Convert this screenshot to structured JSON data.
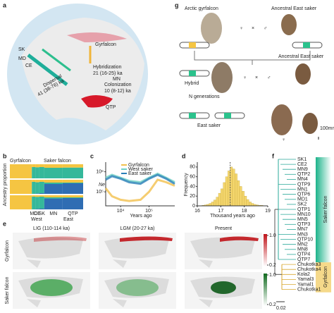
{
  "panels": {
    "a": {
      "label": "a",
      "sites": [
        "SK",
        "MD",
        "CE",
        "MN",
        "QTP"
      ],
      "gyrfalcon": "Gyrfalcon",
      "hybridization": "Hybridization",
      "hybridization_time": "21 (16-25) ka",
      "dispersal": "Dispersal",
      "dispersal_time": "41 (38-76) ka",
      "colonization": "Colonization",
      "colonization_time": "10 (8-12) ka"
    },
    "b": {
      "label": "b",
      "top": [
        "Gyrfalcon",
        "Saker falcon"
      ],
      "ylabel": "Ancestry proportion",
      "groups": [
        "",
        "MD",
        "CE",
        "SK",
        "MN",
        "QTP"
      ],
      "regions": [
        "West",
        "East"
      ],
      "colors": [
        "#f5c542",
        "#35b89a",
        "#2f6db3"
      ],
      "rows": [
        [
          [
            1,
            0
          ],
          [
            0.2,
            0.8
          ],
          [
            0.22,
            0.78
          ],
          [
            0.2,
            0.8
          ],
          [
            0.25,
            0.75
          ],
          [
            0.24,
            0.76
          ]
        ],
        [
          [
            1,
            0,
            0
          ],
          [
            0.15,
            0.85,
            0
          ],
          [
            0.18,
            0.8,
            0.02
          ],
          [
            0.15,
            0.8,
            0.05
          ],
          [
            0.2,
            0.1,
            0.7
          ],
          [
            0.2,
            0.05,
            0.75
          ]
        ],
        [
          [
            1,
            0,
            0
          ],
          [
            0.1,
            0.9,
            0
          ],
          [
            0.12,
            0.85,
            0.03
          ],
          [
            0.1,
            0.85,
            0.05
          ],
          [
            0.15,
            0.08,
            0.77
          ],
          [
            0.15,
            0.05,
            0.8
          ]
        ]
      ]
    },
    "c": {
      "label": "c",
      "type": "line",
      "ylabel": "Ne",
      "xlabel": "Years ago",
      "log": true,
      "x": [
        3000,
        5000,
        10000,
        20000,
        50000,
        100000,
        200000,
        400000,
        800000
      ],
      "series": [
        {
          "name": "Gyrfalcon",
          "color": "#f2c14e",
          "values": [
            150000,
            60000,
            40000,
            35000,
            40000,
            100000,
            400000,
            300000,
            200000
          ]
        },
        {
          "name": "West saker",
          "color": "#6fd0c4",
          "values": [
            500000,
            700000,
            500000,
            350000,
            300000,
            500000,
            800000,
            500000,
            300000
          ]
        },
        {
          "name": "East saker",
          "color": "#2a7fb8",
          "values": [
            400000,
            600000,
            450000,
            300000,
            250000,
            450000,
            700000,
            450000,
            250000
          ]
        }
      ],
      "xlim": [
        3000,
        800000
      ],
      "xticks": [
        {
          "value": 10000,
          "label": "10⁴"
        },
        {
          "value": 100000,
          "label": "10⁵"
        }
      ],
      "ylim": [
        20000,
        3000000
      ],
      "yticks": [
        {
          "value": 100000,
          "label": "10⁵"
        },
        {
          "value": 1000000,
          "label": "10⁶"
        }
      ]
    },
    "d": {
      "label": "d",
      "type": "histogram",
      "ylabel": "Frequency",
      "xlabel": "Thousand years ago",
      "color": "#f5d76e",
      "mean": 17.4,
      "bins": [
        16.0,
        16.1,
        16.2,
        16.3,
        16.4,
        16.5,
        16.6,
        16.7,
        16.8,
        16.9,
        17.0,
        17.1,
        17.2,
        17.3,
        17.4,
        17.5,
        17.6,
        17.7,
        17.8,
        17.9,
        18.0,
        18.1,
        18.2,
        18.3,
        18.4,
        18.5,
        18.6,
        18.7,
        18.8,
        18.9,
        19.0
      ],
      "counts": [
        0,
        0,
        1,
        2,
        3,
        5,
        8,
        12,
        18,
        26,
        35,
        48,
        60,
        72,
        80,
        76,
        66,
        52,
        40,
        30,
        20,
        13,
        8,
        5,
        3,
        2,
        1,
        1,
        0,
        0
      ],
      "xlim": [
        16,
        19
      ],
      "xticks": [
        16,
        17,
        18,
        19
      ],
      "ylim": [
        0,
        90
      ],
      "yticks": [
        0,
        20,
        40,
        60,
        80
      ]
    },
    "e": {
      "label": "e",
      "columns": [
        "LIG (110-114 ka)",
        "LGM (20-27 ka)",
        "Present"
      ],
      "rows": [
        "Gyrfalcon",
        "Saker falcon"
      ],
      "scale_ticks": [
        {
          "value": 1,
          "label": "1.0"
        },
        0.2
      ]
    },
    "f": {
      "label": "f",
      "leaves": [
        "SK1",
        "CE2",
        "MN9",
        "QTP2",
        "MN4",
        "QTP9",
        "MN1",
        "QTP6",
        "MD1",
        "SK2",
        "QTP1",
        "MN10",
        "MN5",
        "QTP3",
        "MN7",
        "MN3",
        "QTP10",
        "MN2",
        "MN8",
        "QTP4",
        "QTP7",
        "Chukotka3",
        "Chukotka4",
        "Kola2",
        "Yamal3",
        "Yamal1",
        "Chukotka1"
      ],
      "clades": [
        "Saker falcon",
        "Gyrfalcon"
      ],
      "scale": "0.02"
    },
    "g": {
      "label": "g",
      "arctic": "Arctic gyrfalcon",
      "ancestral": "Ancestral East saker",
      "female": "♀",
      "cross": "×",
      "male": "♂",
      "hybrid": "Hybrid",
      "generations": "N generations",
      "east": "East saker",
      "scalebar": "100mm"
    }
  }
}
